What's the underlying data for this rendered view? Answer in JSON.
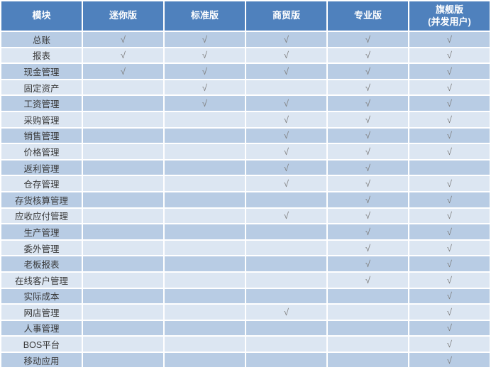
{
  "colors": {
    "header_bg": "#4F81BD",
    "header_text": "#FFFFFF",
    "row_dark": "#B8CCE4",
    "row_light": "#DCE6F2",
    "check": "#7F7F7F",
    "gridline": "#FFFFFF"
  },
  "check_symbol": "√",
  "table": {
    "columns": [
      "模块",
      "迷你版",
      "标准版",
      "商贸版",
      "专业版",
      "旗舰版\n(并发用户)"
    ],
    "rows": [
      {
        "module": "总账",
        "cells": [
          "√",
          "√",
          "√",
          "√",
          "√"
        ]
      },
      {
        "module": "报表",
        "cells": [
          "√",
          "√",
          "√",
          "√",
          "√"
        ]
      },
      {
        "module": "现金管理",
        "cells": [
          "√",
          "√",
          "√",
          "√",
          "√"
        ]
      },
      {
        "module": "固定资产",
        "cells": [
          "",
          "√",
          "",
          "√",
          "√"
        ]
      },
      {
        "module": "工资管理",
        "cells": [
          "",
          "√",
          "√",
          "√",
          "√"
        ]
      },
      {
        "module": "采购管理",
        "cells": [
          "",
          "",
          "√",
          "√",
          "√"
        ]
      },
      {
        "module": "销售管理",
        "cells": [
          "",
          "",
          "√",
          "√",
          "√"
        ]
      },
      {
        "module": "价格管理",
        "cells": [
          "",
          "",
          "√",
          "√",
          "√"
        ]
      },
      {
        "module": "返利管理",
        "cells": [
          "",
          "",
          "√",
          "√",
          ""
        ]
      },
      {
        "module": "仓存管理",
        "cells": [
          "",
          "",
          "√",
          "√",
          "√"
        ]
      },
      {
        "module": "存货核算管理",
        "cells": [
          "",
          "",
          "",
          "√",
          "√"
        ]
      },
      {
        "module": "应收应付管理",
        "cells": [
          "",
          "",
          "√",
          "√",
          "√"
        ]
      },
      {
        "module": "生产管理",
        "cells": [
          "",
          "",
          "",
          "√",
          "√"
        ]
      },
      {
        "module": "委外管理",
        "cells": [
          "",
          "",
          "",
          "√",
          "√"
        ]
      },
      {
        "module": "老板报表",
        "cells": [
          "",
          "",
          "",
          "√",
          "√"
        ]
      },
      {
        "module": "在线客户管理",
        "cells": [
          "",
          "",
          "",
          "√",
          "√"
        ]
      },
      {
        "module": "实际成本",
        "cells": [
          "",
          "",
          "",
          "",
          "√"
        ]
      },
      {
        "module": "网店管理",
        "cells": [
          "",
          "",
          "√",
          "",
          "√"
        ]
      },
      {
        "module": "人事管理",
        "cells": [
          "",
          "",
          "",
          "",
          "√"
        ]
      },
      {
        "module": "BOS平台",
        "cells": [
          "",
          "",
          "",
          "",
          "√"
        ]
      },
      {
        "module": "移动应用",
        "cells": [
          "",
          "",
          "",
          "",
          "√"
        ]
      }
    ]
  },
  "chart_data": {
    "type": "table",
    "title": "",
    "columns": [
      "模块",
      "迷你版",
      "标准版",
      "商贸版",
      "专业版",
      "旗舰版(并发用户)"
    ],
    "rows": [
      [
        "总账",
        "√",
        "√",
        "√",
        "√",
        "√"
      ],
      [
        "报表",
        "√",
        "√",
        "√",
        "√",
        "√"
      ],
      [
        "现金管理",
        "√",
        "√",
        "√",
        "√",
        "√"
      ],
      [
        "固定资产",
        "",
        "√",
        "",
        "√",
        "√"
      ],
      [
        "工资管理",
        "",
        "√",
        "√",
        "√",
        "√"
      ],
      [
        "采购管理",
        "",
        "",
        "√",
        "√",
        "√"
      ],
      [
        "销售管理",
        "",
        "",
        "√",
        "√",
        "√"
      ],
      [
        "价格管理",
        "",
        "",
        "√",
        "√",
        "√"
      ],
      [
        "返利管理",
        "",
        "",
        "√",
        "√",
        ""
      ],
      [
        "仓存管理",
        "",
        "",
        "√",
        "√",
        "√"
      ],
      [
        "存货核算管理",
        "",
        "",
        "",
        "√",
        "√"
      ],
      [
        "应收应付管理",
        "",
        "",
        "√",
        "√",
        "√"
      ],
      [
        "生产管理",
        "",
        "",
        "",
        "√",
        "√"
      ],
      [
        "委外管理",
        "",
        "",
        "",
        "√",
        "√"
      ],
      [
        "老板报表",
        "",
        "",
        "",
        "√",
        "√"
      ],
      [
        "在线客户管理",
        "",
        "",
        "",
        "√",
        "√"
      ],
      [
        "实际成本",
        "",
        "",
        "",
        "",
        "√"
      ],
      [
        "网店管理",
        "",
        "",
        "√",
        "",
        "√"
      ],
      [
        "人事管理",
        "",
        "",
        "",
        "",
        "√"
      ],
      [
        "BOS平台",
        "",
        "",
        "",
        "",
        "√"
      ],
      [
        "移动应用",
        "",
        "",
        "",
        "",
        "√"
      ]
    ],
    "layout_hints": {
      "header_style": "solid blue banner, white bold text",
      "body_style": "alternating light-blue rows starting dark, white 2px gridlines",
      "check_mark": "√ gray, centered"
    }
  }
}
